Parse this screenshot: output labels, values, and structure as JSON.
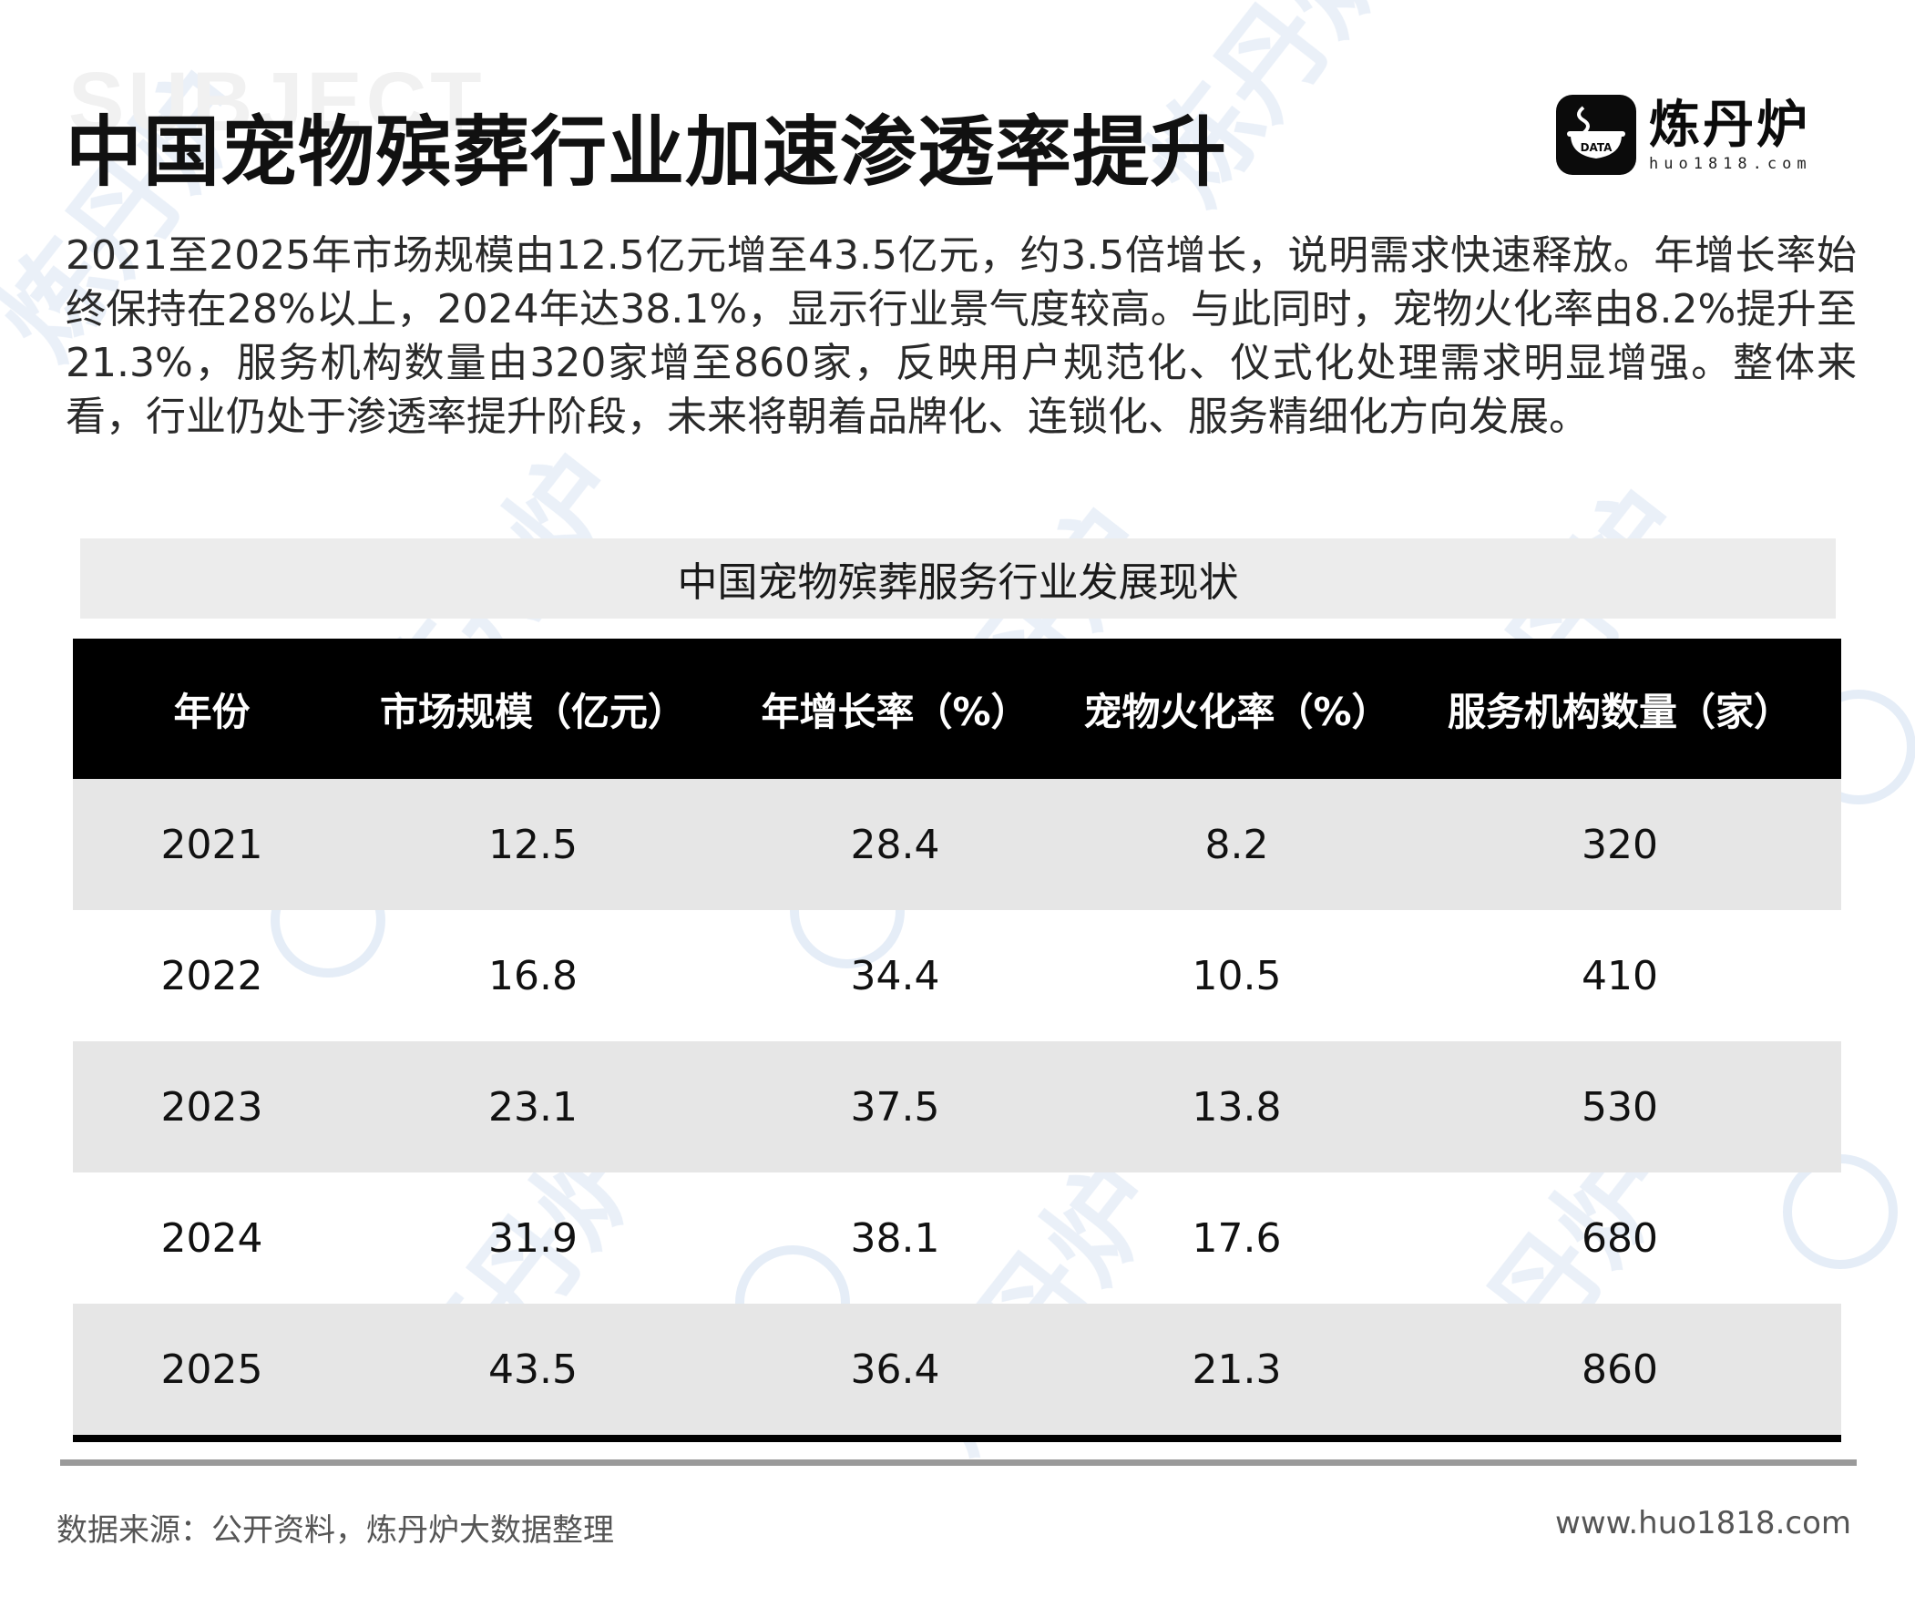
{
  "page": {
    "ghost_word": "SUBJECT",
    "title": "中国宠物殡葬行业加速渗透率提升",
    "summary": "2021至2025年市场规模由12.5亿元增至43.5亿元，约3.5倍增长，说明需求快速释放。年增长率始终保持在28%以上，2024年达38.1%，显示行业景气度较高。与此同时，宠物火化率由8.2%提升至21.3%，服务机构数量由320家增至860家，反映用户规范化、仪式化处理需求明显增强。整体来看，行业仍处于渗透率提升阶段，未来将朝着品牌化、连锁化、服务精细化方向发展。"
  },
  "logo": {
    "badge_text": "DATA",
    "name": "炼丹炉",
    "url": "huo1818.com"
  },
  "table": {
    "caption": "中国宠物殡葬服务行业发展现状",
    "headers": [
      "年份",
      "市场规模（亿元）",
      "年增长率（%）",
      "宠物火化率（%）",
      "服务机构数量（家）"
    ],
    "rows": [
      [
        "2021",
        "12.5",
        "28.4",
        "8.2",
        "320"
      ],
      [
        "2022",
        "16.8",
        "34.4",
        "10.5",
        "410"
      ],
      [
        "2023",
        "23.1",
        "37.5",
        "13.8",
        "530"
      ],
      [
        "2024",
        "31.9",
        "38.1",
        "17.6",
        "680"
      ],
      [
        "2025",
        "43.5",
        "36.4",
        "21.3",
        "860"
      ]
    ]
  },
  "footer": {
    "source": "数据来源：公开资料，炼丹炉大数据整理",
    "site": "www.huo1818.com"
  },
  "watermark": {
    "text": "炼丹炉",
    "badge_text": "DATA",
    "color": "#dfe8f5"
  },
  "colors": {
    "header_bg": "#000000",
    "stripe": "#e6e6e6",
    "caption_bg": "#ececec"
  }
}
